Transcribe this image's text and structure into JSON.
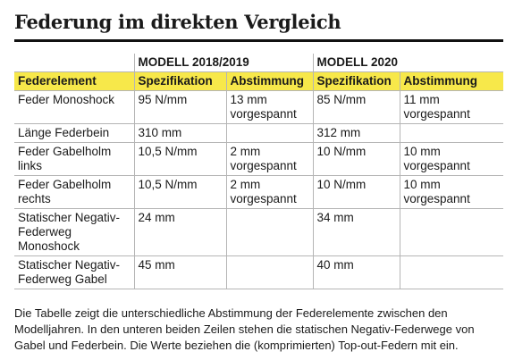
{
  "header": {
    "title": "Federung im direkten Vergleich"
  },
  "table": {
    "groups": [
      "MODELL 2018/2019",
      "MODELL 2020"
    ],
    "columns": [
      "Federelement",
      "Spezifikation",
      "Abstimmung",
      "Spezifikation",
      "Abstimmung"
    ],
    "rows": [
      [
        "Feder Monoshock",
        "95 N/mm",
        "13 mm vorgespannt",
        "85 N/mm",
        "11 mm vorgespannt"
      ],
      [
        "Länge Federbein",
        "310 mm",
        null,
        "312 mm",
        null
      ],
      [
        "Feder Gabelholm links",
        "10,5 N/mm",
        "2 mm vorgespannt",
        "10 N/mm",
        "10 mm vorgespannt"
      ],
      [
        "Feder Gabelholm rechts",
        "10,5 N/mm",
        "2 mm vorgespannt",
        "10 N/mm",
        "10 mm vorgespannt"
      ],
      [
        "Statischer Negativ-Federweg Monoshock",
        "24 mm",
        null,
        "34 mm",
        null
      ],
      [
        "Statischer Negativ-Federweg Gabel",
        "45 mm",
        null,
        "40 mm",
        null
      ]
    ]
  },
  "footer": {
    "text": "Die Tabelle zeigt die unterschiedliche Abstimmung der Federelemente zwischen den Modelljahren. In den unteren beiden Zeilen stehen die statischen Negativ-Federwege von Gabel und Federbein. Die Werte beziehen die (komprimierten) Top-out-Federn mit ein."
  }
}
